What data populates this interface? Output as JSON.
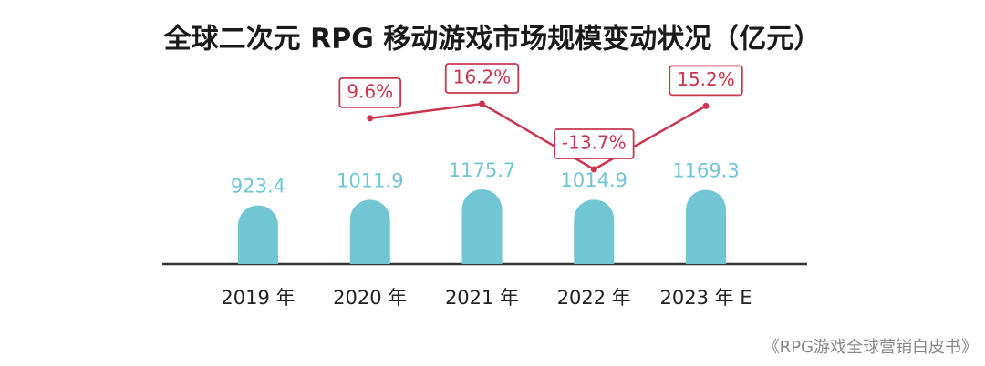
{
  "chart_data": {
    "type": "bar",
    "title": "全球二次元 RPG 移动游戏市场规模变动状况（亿元）",
    "categories": [
      "2019 年",
      "2020 年",
      "2021 年",
      "2022 年",
      "2023 年 E"
    ],
    "series": [
      {
        "type": "bar",
        "color": "#72c6d4",
        "values": [
          923.4,
          1011.9,
          1175.7,
          1014.9,
          1169.3
        ]
      },
      {
        "type": "line",
        "axis": "y2",
        "color": "#c8374f",
        "values": [
          null,
          9.6,
          16.2,
          -13.7,
          15.2
        ],
        "value_labels": [
          null,
          "9.6%",
          "16.2%",
          "-13.7%",
          "15.2%"
        ]
      }
    ],
    "source": "《RPG游戏全球营销白皮书》"
  }
}
